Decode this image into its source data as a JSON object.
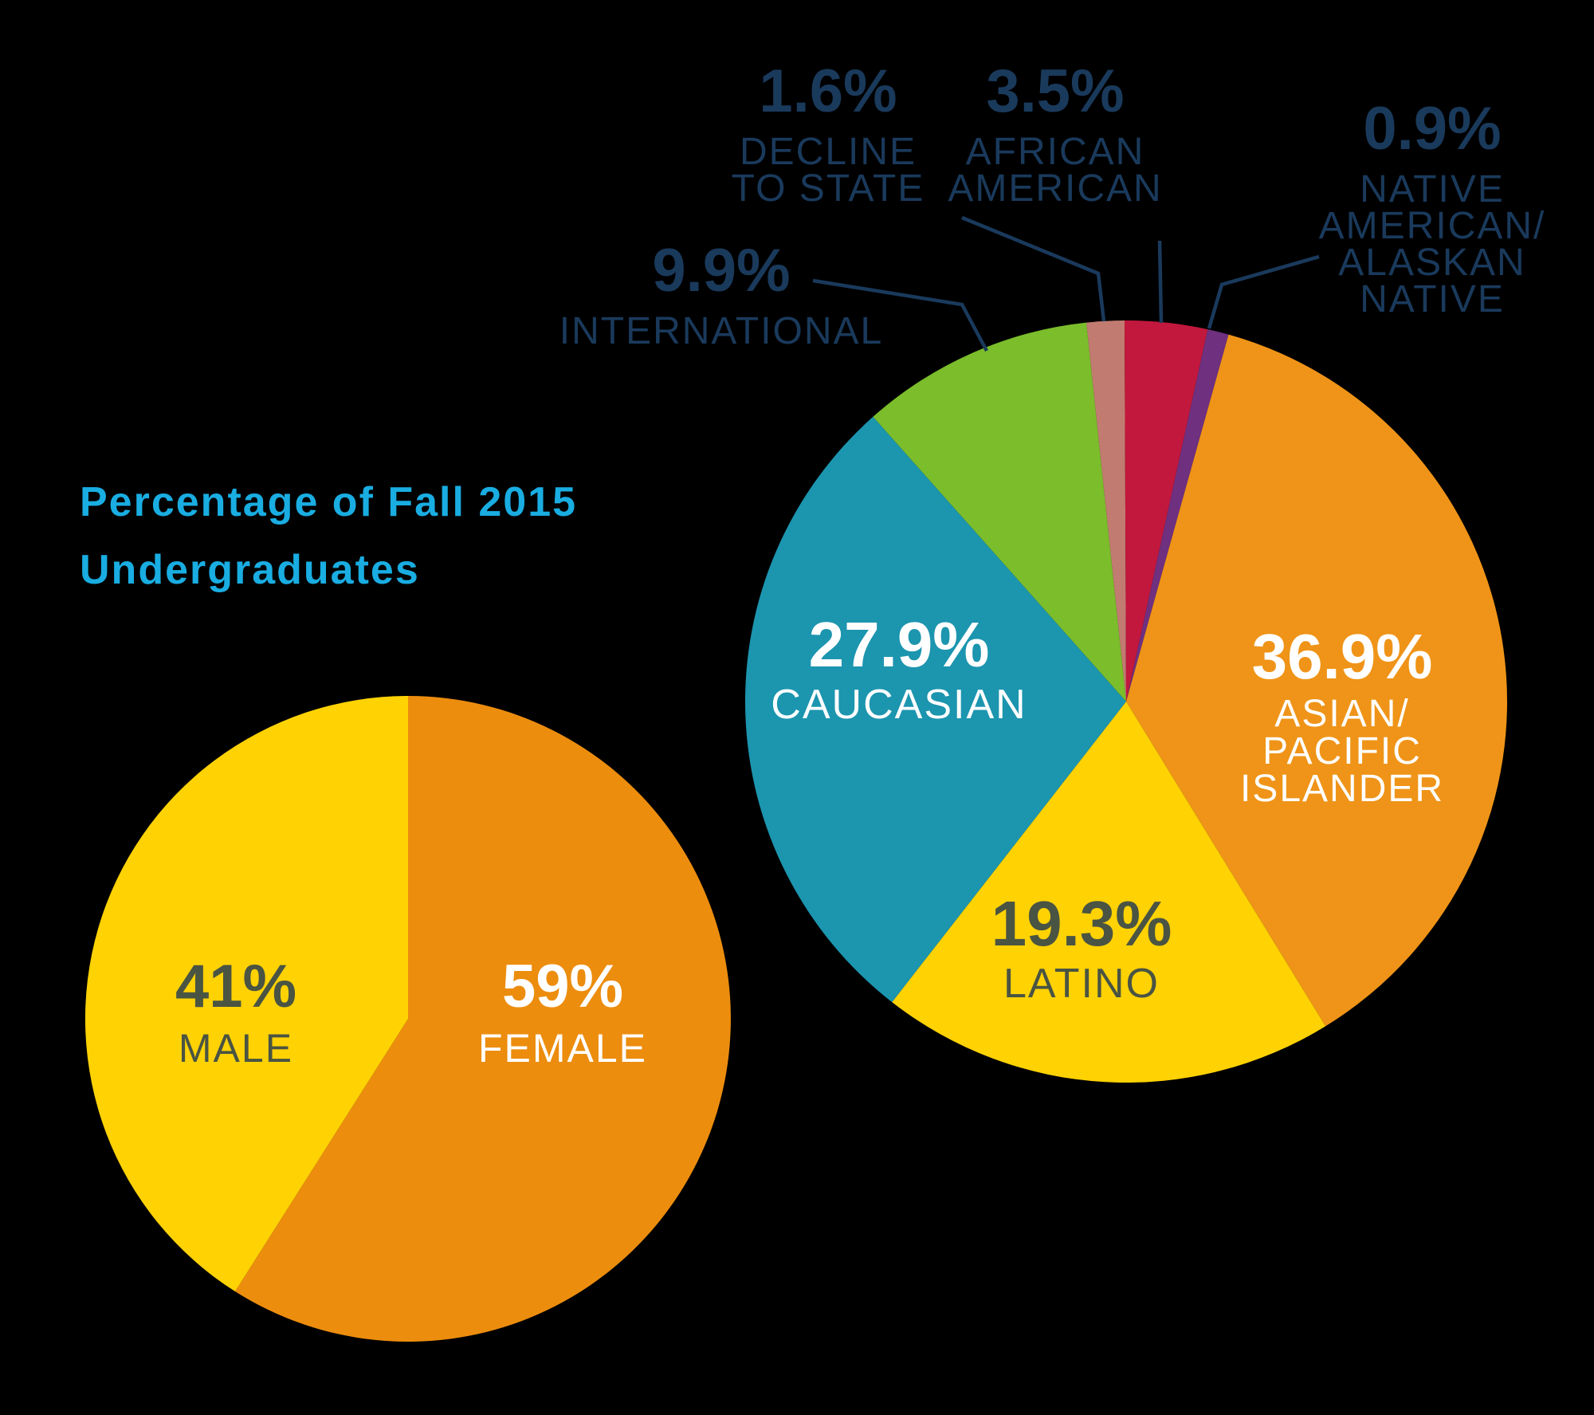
{
  "title": {
    "line1": "Percentage of Fall 2015",
    "line2": "Undergraduates"
  },
  "colors": {
    "background": "#000000",
    "title_cyan": "#19ADE2",
    "label_navy": "#1A3A5C",
    "dark_olive": "#4A5442",
    "white": "#FFFFFF"
  },
  "chart_data": [
    {
      "id": "ethnicity",
      "type": "pie",
      "title": "Percentage of Fall 2015 Undergraduates",
      "rotation_deg": -6,
      "legend_position": "labels-on-and-around-pie",
      "slices": [
        {
          "id": "decline-to-state",
          "label": "DECLINE TO STATE",
          "label_lines": [
            "DECLINE",
            "TO STATE"
          ],
          "display": "1.6%",
          "value_pct": 1.6,
          "color": "#C17B70",
          "label_placement": "outside"
        },
        {
          "id": "african-american",
          "label": "AFRICAN AMERICAN",
          "label_lines": [
            "AFRICAN",
            "AMERICAN"
          ],
          "display": "3.5%",
          "value_pct": 3.5,
          "color": "#C2183D",
          "label_placement": "outside"
        },
        {
          "id": "native-american-alaskan-native",
          "label": "NATIVE AMERICAN/ALASKAN NATIVE",
          "label_lines": [
            "NATIVE",
            "AMERICAN/",
            "ALASKAN",
            "NATIVE"
          ],
          "display": "0.9%",
          "value_pct": 0.9,
          "color": "#6F3080",
          "label_placement": "outside"
        },
        {
          "id": "asian-pacific-islander",
          "label": "ASIAN/PACIFIC ISLANDER",
          "label_lines": [
            "ASIAN/",
            "PACIFIC",
            "ISLANDER"
          ],
          "display": "36.9%",
          "value_pct": 36.9,
          "color": "#EF9418",
          "label_placement": "inside",
          "text_color": "#FFFFFF"
        },
        {
          "id": "latino",
          "label": "LATINO",
          "label_lines": [
            "LATINO"
          ],
          "display": "19.3%",
          "value_pct": 19.3,
          "color": "#FFD204",
          "label_placement": "inside",
          "text_color": "#4A5442"
        },
        {
          "id": "caucasian",
          "label": "CAUCASIAN",
          "label_lines": [
            "CAUCASIAN"
          ],
          "display": "27.9%",
          "value_pct": 27.9,
          "color": "#1C95AF",
          "label_placement": "inside",
          "text_color": "#FFFFFF"
        },
        {
          "id": "international",
          "label": "INTERNATIONAL",
          "label_lines": [
            "INTERNATIONAL"
          ],
          "display": "9.9%",
          "value_pct": 9.9,
          "color": "#7BBD2B",
          "label_placement": "outside"
        }
      ]
    },
    {
      "id": "gender",
      "type": "pie",
      "rotation_deg": 0,
      "slices": [
        {
          "id": "female",
          "label": "FEMALE",
          "display": "59%",
          "value_pct": 59,
          "color": "#EC8D0E",
          "label_placement": "inside",
          "text_color": "#FFFFFF"
        },
        {
          "id": "male",
          "label": "MALE",
          "display": "41%",
          "value_pct": 41,
          "color": "#FFD204",
          "label_placement": "inside",
          "text_color": "#4A5442"
        }
      ]
    }
  ]
}
